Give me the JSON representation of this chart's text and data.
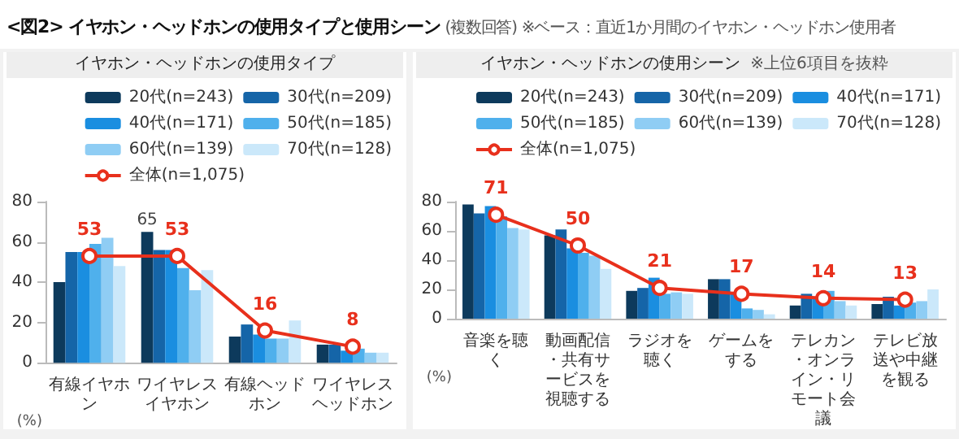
{
  "chart_data": [
    {
      "type": "bar",
      "title": "イヤホン・ヘッドホンの使用タイプ",
      "annotations": [
        "<図2> イヤホン・ヘッドホンの使用タイプと使用シーン",
        "(複数回答)",
        "※ベース：直近1か月間のイヤホン・ヘッドホン使用者"
      ],
      "categories": [
        "有線イヤホン",
        "ワイヤレスイヤホン",
        "有線ヘッドホン",
        "ワイヤレスヘッドホン"
      ],
      "ylabel": "(%)",
      "ylim": [
        0,
        80
      ],
      "yticks": [
        0,
        20,
        40,
        60,
        80
      ],
      "legend": "top",
      "grid": false,
      "series": [
        {
          "name": "20代(n=243)",
          "color": "#0d3a5c",
          "values": [
            40,
            65,
            13,
            9
          ],
          "value_labels": [
            null,
            "65",
            null,
            null
          ]
        },
        {
          "name": "30代(n=209)",
          "color": "#1565a8",
          "values": [
            55,
            56,
            19,
            9
          ]
        },
        {
          "name": "40代(n=171)",
          "color": "#1a8ee0",
          "values": [
            55,
            56,
            14,
            6
          ]
        },
        {
          "name": "50代(n=185)",
          "color": "#4fb0ec",
          "values": [
            59,
            47,
            12,
            7
          ]
        },
        {
          "name": "60代(n=139)",
          "color": "#8fcdf4",
          "values": [
            62,
            36,
            12,
            5
          ]
        },
        {
          "name": "70代(n=128)",
          "color": "#cbe8fa",
          "values": [
            48,
            46,
            21,
            5
          ]
        },
        {
          "name": "全体(n=1,075)",
          "type": "line",
          "marker": "circle",
          "color": "#e8301c",
          "values": [
            53,
            53,
            16,
            8
          ],
          "value_labels": [
            "53",
            "53",
            "16",
            "8"
          ]
        }
      ]
    },
    {
      "type": "bar",
      "title": "イヤホン・ヘッドホンの使用シーン",
      "subtitle": "※上位6項目を抜粋",
      "categories": [
        "音楽を聴く",
        "動画配信・共有サービスを視聴する",
        "ラジオを聴く",
        "ゲームをする",
        "テレカン・オンライン・リモート会議",
        "テレビ放送や中継を観る"
      ],
      "ylabel": "(%)",
      "ylim": [
        0,
        80
      ],
      "yticks": [
        0,
        20,
        40,
        60,
        80
      ],
      "legend": "top",
      "grid": false,
      "series": [
        {
          "name": "20代(n=243)",
          "color": "#0d3a5c",
          "values": [
            78,
            57,
            19,
            27,
            9,
            10
          ]
        },
        {
          "name": "30代(n=209)",
          "color": "#1565a8",
          "values": [
            72,
            61,
            21,
            27,
            17,
            15
          ]
        },
        {
          "name": "40代(n=171)",
          "color": "#1a8ee0",
          "values": [
            77,
            48,
            28,
            17,
            14,
            9
          ]
        },
        {
          "name": "50代(n=185)",
          "color": "#4fb0ec",
          "values": [
            70,
            45,
            17,
            7,
            19,
            11
          ]
        },
        {
          "name": "60代(n=139)",
          "color": "#8fcdf4",
          "values": [
            62,
            43,
            18,
            6,
            12,
            12
          ]
        },
        {
          "name": "70代(n=128)",
          "color": "#cbe8fa",
          "values": [
            61,
            34,
            17,
            3,
            9,
            20
          ]
        },
        {
          "name": "全体(n=1,075)",
          "type": "line",
          "marker": "circle",
          "color": "#e8301c",
          "values": [
            71,
            50,
            21,
            17,
            14,
            13
          ],
          "value_labels": [
            "71",
            "50",
            "21",
            "17",
            "14",
            "13"
          ]
        }
      ]
    }
  ]
}
